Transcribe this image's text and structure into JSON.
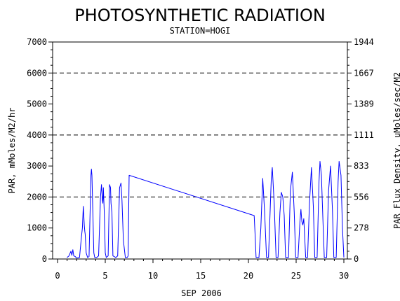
{
  "chart_data": {
    "type": "line",
    "title": "PHOTOSYNTHETIC RADIATION",
    "subtitle": "STATION=HOGI",
    "xlabel": "SEP 2006",
    "ylabel": "PAR, mMoles/M2/hr",
    "y2label": "PAR Flux Density, uMoles/sec/M2",
    "xlim": [
      0,
      30
    ],
    "ylim": [
      0,
      7000
    ],
    "x_ticks": [
      "0",
      "5",
      "10",
      "15",
      "20",
      "25",
      "30"
    ],
    "y_ticks": [
      "0",
      "1000",
      "2000",
      "3000",
      "4000",
      "5000",
      "6000",
      "7000"
    ],
    "y2_ticks": [
      "0",
      "278",
      "556",
      "833",
      "1111",
      "1389",
      "1667",
      "1944"
    ],
    "gridlines_y": [
      2000,
      4000,
      6000
    ],
    "line_color": "#0000ff",
    "series": [
      {
        "x": [
          1.0,
          1.2,
          1.4,
          1.5,
          1.6,
          1.7,
          1.85,
          2.0,
          2.3,
          2.5,
          2.6,
          2.7,
          2.8,
          2.85,
          2.9,
          3.0,
          3.15,
          3.3,
          3.5,
          3.55,
          3.6,
          3.7,
          3.8,
          3.9,
          4.1,
          4.3,
          4.5,
          4.6,
          4.7,
          4.75,
          4.8,
          4.9,
          5.0,
          5.1,
          5.3,
          5.45,
          5.55,
          5.6,
          5.7,
          5.8,
          6.1,
          6.3,
          6.5,
          6.65,
          6.75,
          6.9,
          7.1,
          7.3,
          7.4,
          7.5,
          20.6,
          20.7,
          20.8,
          21.1,
          21.3,
          21.5,
          21.7,
          21.9,
          22.1,
          22.4,
          22.5,
          22.7,
          22.9,
          23.1,
          23.3,
          23.45,
          23.6,
          23.75,
          23.9,
          24.2,
          24.4,
          24.6,
          24.8,
          24.95,
          25.2,
          25.4,
          25.5,
          25.6,
          25.7,
          25.8,
          26.0,
          26.2,
          26.4,
          26.6,
          26.8,
          26.95,
          27.2,
          27.4,
          27.5,
          27.65,
          27.8,
          27.95,
          28.2,
          28.4,
          28.6,
          28.8,
          28.95,
          29.2,
          29.4,
          29.5,
          29.7,
          29.85,
          30.0
        ],
        "y": [
          50,
          100,
          250,
          120,
          300,
          100,
          80,
          30,
          50,
          700,
          1000,
          1700,
          1100,
          900,
          800,
          200,
          50,
          80,
          2700,
          2900,
          2700,
          1500,
          200,
          50,
          50,
          100,
          2000,
          2400,
          1900,
          1800,
          2300,
          1500,
          200,
          50,
          100,
          2400,
          2300,
          1800,
          1500,
          100,
          50,
          100,
          2300,
          2450,
          1900,
          600,
          50,
          50,
          100,
          2700,
          1400,
          800,
          50,
          50,
          1000,
          2600,
          1500,
          50,
          50,
          2600,
          2950,
          1800,
          50,
          50,
          1500,
          2150,
          2000,
          1400,
          50,
          50,
          2200,
          2800,
          1500,
          50,
          50,
          1200,
          1600,
          1200,
          1100,
          1300,
          50,
          50,
          1800,
          2950,
          1700,
          50,
          50,
          2500,
          3150,
          2700,
          1300,
          50,
          50,
          2200,
          3000,
          1600,
          50,
          50,
          2500,
          3150,
          2700,
          1000,
          50
        ]
      }
    ]
  }
}
